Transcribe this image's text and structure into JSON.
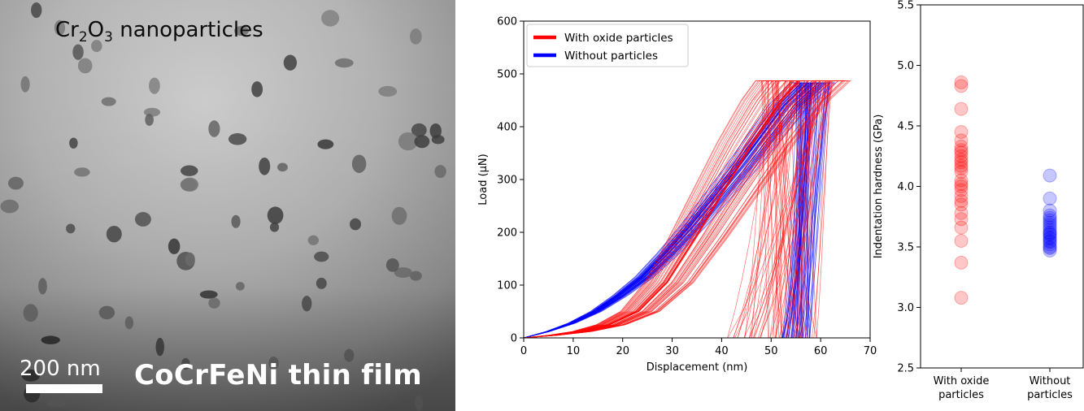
{
  "tem_image": {
    "title_prefix": "Cr",
    "title_sub1": "2",
    "title_mid": "O",
    "title_sub2": "3",
    "title_suffix": " nanoparticles",
    "scale_label": "200 nm",
    "film_label": "CoCrFeNi thin film",
    "colors": {
      "background": "#8f8f8f",
      "particle": "#2a2a2a",
      "text_light": "#ffffff"
    }
  },
  "chart_data": [
    {
      "type": "line",
      "xlabel": "Displacement (nm)",
      "ylabel": "Load (μN)",
      "xlim": [
        0,
        70
      ],
      "ylim": [
        0,
        600
      ],
      "xticks": [
        0,
        10,
        20,
        30,
        40,
        50,
        60,
        70
      ],
      "yticks": [
        0,
        100,
        200,
        300,
        400,
        500,
        600
      ],
      "legend_position": "top-left",
      "series": [
        {
          "name": "With oxide particles",
          "color": "#ff0000",
          "loading": {
            "x": [
              0,
              5,
              10,
              15,
              20,
              25,
              30,
              35,
              40,
              45,
              48
            ],
            "y": [
              0,
              5,
              12,
              25,
              50,
              105,
              190,
              280,
              370,
              450,
              487
            ]
          },
          "unloading": {
            "x": [
              48,
              47,
              46,
              45,
              44,
              43,
              42,
              41
            ],
            "y": [
              487,
              420,
              340,
              260,
              180,
              110,
              50,
              0
            ]
          },
          "loading_x_range": [
            48,
            63
          ],
          "unloading_x_range": [
            41,
            60
          ]
        },
        {
          "name": "Without particles",
          "color": "#0000ff",
          "loading": {
            "x": [
              0,
              5,
              10,
              15,
              20,
              25,
              30,
              35,
              40,
              45,
              50,
              55,
              60
            ],
            "y": [
              0,
              12,
              28,
              50,
              80,
              115,
              160,
              210,
              265,
              320,
              380,
              440,
              483
            ]
          },
          "unloading": {
            "x": [
              60,
              59,
              58,
              57,
              56,
              55,
              54,
              53
            ],
            "y": [
              483,
              410,
              330,
              250,
              170,
              100,
              40,
              0
            ]
          },
          "loading_x_range": [
            55,
            62
          ],
          "unloading_x_range": [
            52,
            58
          ]
        }
      ]
    },
    {
      "type": "scatter",
      "xlabel": "",
      "ylabel": "Indentation hardness (GPa)",
      "ylim": [
        2.5,
        5.5
      ],
      "yticks": [
        "2.5",
        "3.0",
        "3.5",
        "4.0",
        "4.5",
        "5.0",
        "5.5"
      ],
      "categories": [
        "With oxide particles",
        "Without particles"
      ],
      "category_labels": [
        [
          "With oxide",
          "particles"
        ],
        [
          "Without",
          "particles"
        ]
      ],
      "series": [
        {
          "category": "With oxide particles",
          "color": "#ff0000",
          "values": [
            4.86,
            4.83,
            4.64,
            4.45,
            4.38,
            4.33,
            4.3,
            4.28,
            4.25,
            4.22,
            4.2,
            4.17,
            4.15,
            4.12,
            4.05,
            4.02,
            4.0,
            3.97,
            3.92,
            3.88,
            3.85,
            3.78,
            3.73,
            3.66,
            3.55,
            3.37,
            3.08
          ]
        },
        {
          "category": "Without particles",
          "color": "#0000ff",
          "values": [
            4.09,
            3.9,
            3.8,
            3.76,
            3.74,
            3.72,
            3.7,
            3.68,
            3.66,
            3.64,
            3.62,
            3.61,
            3.6,
            3.58,
            3.57,
            3.55,
            3.54,
            3.52,
            3.5,
            3.49,
            3.47
          ]
        }
      ]
    }
  ]
}
